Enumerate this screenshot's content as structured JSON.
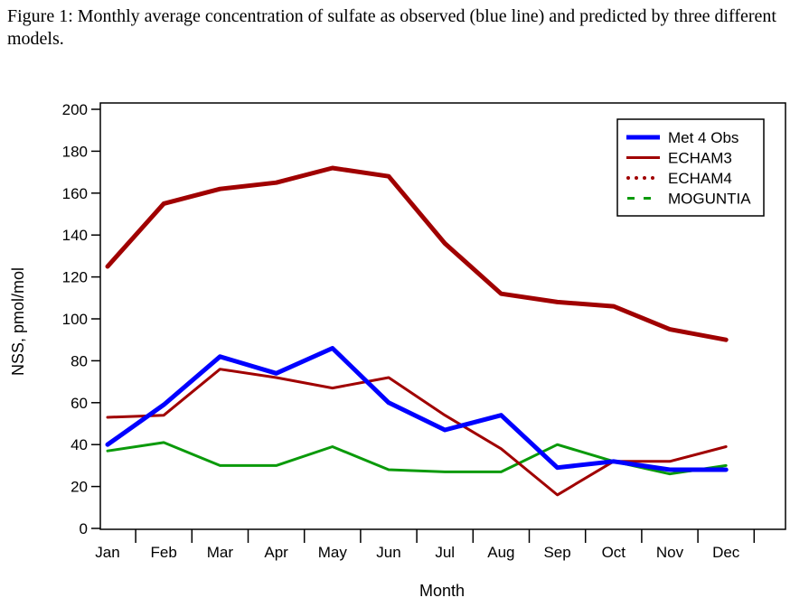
{
  "caption": "Figure 1: Monthly average concentration of sulfate as observed (blue line) and predicted by three different models.",
  "chart_data": {
    "type": "line",
    "xlabel": "Month",
    "ylabel": "NSS, pmol/mol",
    "categories": [
      "Jan",
      "Feb",
      "Mar",
      "Apr",
      "May",
      "Jun",
      "Jul",
      "Aug",
      "Sep",
      "Oct",
      "Nov",
      "Dec"
    ],
    "ylim": [
      0,
      200
    ],
    "yticks": [
      0,
      20,
      40,
      60,
      80,
      100,
      120,
      140,
      160,
      180,
      200
    ],
    "grid": false,
    "legend_position": "top-right",
    "series": [
      {
        "name": "Met 4 Obs",
        "color": "#0000ff",
        "style": "solid",
        "values": [
          40,
          59,
          82,
          74,
          86,
          60,
          47,
          54,
          29,
          32,
          28,
          28
        ]
      },
      {
        "name": "ECHAM3",
        "color": "#a00000",
        "style": "solid",
        "values": [
          125,
          155,
          162,
          165,
          172,
          168,
          136,
          112,
          108,
          106,
          95,
          90
        ]
      },
      {
        "name": "ECHAM4",
        "color": "#a00000",
        "style": "dotted",
        "values": [
          53,
          54,
          76,
          72,
          67,
          72,
          54,
          38,
          16,
          32,
          32,
          39
        ]
      },
      {
        "name": "MOGUNTIA",
        "color": "#0a9a0a",
        "style": "dashed",
        "values": [
          37,
          41,
          30,
          30,
          39,
          28,
          27,
          27,
          40,
          32,
          26,
          30
        ]
      }
    ]
  }
}
